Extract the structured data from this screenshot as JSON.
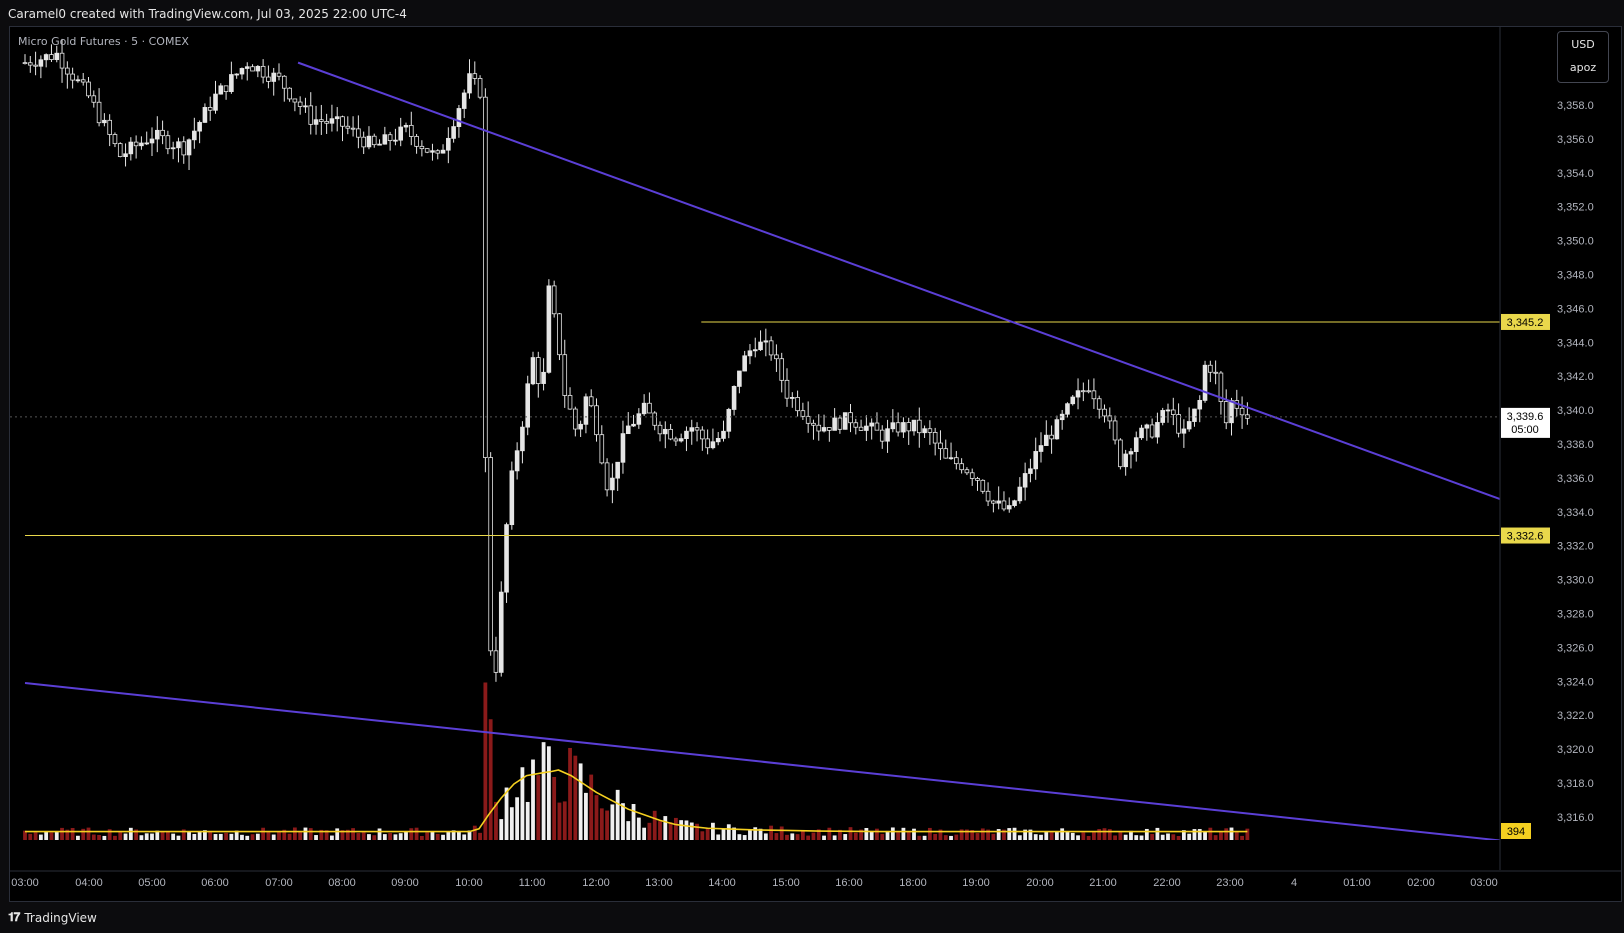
{
  "header": {
    "title": "Caramel0 created with TradingView.com, Jul 03, 2025 22:00 UTC-4"
  },
  "symbol": {
    "label": "Micro Gold Futures · 5 · COMEX"
  },
  "scale": {
    "currency": "USD",
    "setting": "apoz"
  },
  "colors": {
    "background": "#000000",
    "candle": "#e6e6e6",
    "volume_up": "#f0f0f0",
    "volume_down": "#8b1a1a",
    "volume_ma": "#f5d020",
    "trendline": "#5b3fd6",
    "level_line": "#e9d84b"
  },
  "footer": {
    "brand": "TradingView",
    "logo_icon": "tradingview-logo-icon"
  },
  "chart_data": {
    "type": "candlestick",
    "title": "Micro Gold Futures · 5 · COMEX",
    "timeframe": "5",
    "y_ticks": [
      "3,358.0",
      "3,356.0",
      "3,354.0",
      "3,352.0",
      "3,350.0",
      "3,348.0",
      "3,346.0",
      "3,344.0",
      "3,342.0",
      "3,340.0",
      "3,338.0",
      "3,336.0",
      "3,334.0",
      "3,332.0",
      "3,330.0",
      "3,328.0",
      "3,326.0",
      "3,324.0",
      "3,322.0",
      "3,320.0",
      "3,318.0",
      "3,316.0"
    ],
    "x_ticks": [
      "03:00",
      "04:00",
      "05:00",
      "06:00",
      "07:00",
      "08:00",
      "09:00",
      "10:00",
      "11:00",
      "12:00",
      "13:00",
      "14:00",
      "15:00",
      "16:00",
      "18:00",
      "19:00",
      "20:00",
      "21:00",
      "22:00",
      "23:00",
      "4",
      "01:00",
      "02:00",
      "03:00"
    ],
    "ylim": [
      3314.5,
      3361.5
    ],
    "price_path": [
      [
        0,
        3360.5
      ],
      [
        1,
        3361
      ],
      [
        2,
        3358.5
      ],
      [
        3,
        3355
      ],
      [
        4,
        3356.2
      ],
      [
        5,
        3355.5
      ],
      [
        6,
        3358.5
      ],
      [
        7,
        3360.5
      ],
      [
        8,
        3359.5
      ],
      [
        9,
        3357.2
      ],
      [
        10,
        3356.8
      ],
      [
        11,
        3355.5
      ],
      [
        12,
        3356.5
      ],
      [
        13,
        3354.8
      ],
      [
        14,
        3359.5
      ],
      [
        14.35,
        3358.8
      ],
      [
        14.5,
        3337
      ],
      [
        14.6,
        3331
      ],
      [
        14.7,
        3323.5
      ],
      [
        14.85,
        3325
      ],
      [
        15,
        3329
      ],
      [
        15.2,
        3334
      ],
      [
        15.4,
        3337
      ],
      [
        15.6,
        3338.5
      ],
      [
        15.8,
        3341
      ],
      [
        16,
        3343
      ],
      [
        16.3,
        3341
      ],
      [
        16.5,
        3347
      ],
      [
        16.8,
        3344
      ],
      [
        17,
        3341
      ],
      [
        17.4,
        3338.5
      ],
      [
        17.7,
        3341
      ],
      [
        18,
        3339
      ],
      [
        18.4,
        3335
      ],
      [
        18.7,
        3337.5
      ],
      [
        19,
        3339
      ],
      [
        19.5,
        3340
      ],
      [
        20,
        3339
      ],
      [
        20.5,
        3338.5
      ],
      [
        21,
        3339
      ],
      [
        21.5,
        3338
      ],
      [
        22,
        3338.5
      ],
      [
        22.5,
        3342.5
      ],
      [
        23,
        3344
      ],
      [
        23.5,
        3343.5
      ],
      [
        24,
        3341
      ],
      [
        24.5,
        3340
      ],
      [
        25,
        3339
      ],
      [
        25.5,
        3339.2
      ],
      [
        26,
        3339.5
      ],
      [
        26.5,
        3339
      ],
      [
        27,
        3338.5
      ],
      [
        27.5,
        3339
      ],
      [
        28,
        3339
      ],
      [
        28.5,
        3338.5
      ],
      [
        29,
        3337
      ],
      [
        29.5,
        3336.8
      ],
      [
        30,
        3336
      ],
      [
        30.5,
        3334.5
      ],
      [
        31,
        3334
      ],
      [
        31.5,
        3336
      ],
      [
        32,
        3338
      ],
      [
        32.5,
        3339
      ],
      [
        33,
        3340.5
      ],
      [
        33.5,
        3341.5
      ],
      [
        34,
        3340
      ],
      [
        34.5,
        3337
      ],
      [
        35,
        3338.5
      ],
      [
        35.5,
        3338.8
      ],
      [
        36,
        3340
      ],
      [
        36.5,
        3338.5
      ],
      [
        37,
        3340.5
      ],
      [
        37.2,
        3343
      ],
      [
        37.5,
        3342
      ],
      [
        37.8,
        3339
      ],
      [
        38,
        3340.5
      ],
      [
        38.4,
        3340
      ],
      [
        38.5,
        3339.6
      ]
    ],
    "volume_ma": [
      [
        0,
        3
      ],
      [
        1,
        3
      ],
      [
        2,
        3
      ],
      [
        3,
        3
      ],
      [
        4,
        3
      ],
      [
        5,
        3
      ],
      [
        6,
        3
      ],
      [
        7,
        3
      ],
      [
        8,
        3
      ],
      [
        9,
        3
      ],
      [
        10,
        3
      ],
      [
        11,
        3
      ],
      [
        12,
        3
      ],
      [
        13,
        3
      ],
      [
        14,
        3
      ],
      [
        14.3,
        4
      ],
      [
        14.6,
        9
      ],
      [
        15,
        15
      ],
      [
        15.4,
        20
      ],
      [
        15.8,
        23
      ],
      [
        16.3,
        24
      ],
      [
        16.6,
        24.5
      ],
      [
        16.8,
        25
      ],
      [
        17.2,
        23
      ],
      [
        17.6,
        20
      ],
      [
        18,
        17
      ],
      [
        18.5,
        14
      ],
      [
        19,
        11
      ],
      [
        19.5,
        9
      ],
      [
        20,
        7
      ],
      [
        20.5,
        5.5
      ],
      [
        21,
        4.8
      ],
      [
        21.5,
        4.2
      ],
      [
        22,
        4
      ],
      [
        23,
        3.6
      ],
      [
        24,
        3.4
      ],
      [
        25,
        3.2
      ],
      [
        26,
        3.1
      ],
      [
        27,
        3
      ],
      [
        28,
        3
      ],
      [
        29,
        3
      ],
      [
        30,
        3
      ],
      [
        31,
        3
      ],
      [
        32,
        3
      ],
      [
        33,
        3
      ],
      [
        34,
        3
      ],
      [
        35,
        3
      ],
      [
        36,
        3
      ],
      [
        37,
        3
      ],
      [
        38,
        3
      ],
      [
        38.5,
        3
      ]
    ],
    "volume_max": 80,
    "trendlines": [
      {
        "name": "upper-trendline",
        "points": [
          [
            8.6,
            3360.5
          ],
          [
            58,
            3326.9
          ]
        ]
      },
      {
        "name": "lower-trendline",
        "points": [
          [
            0,
            3323.9
          ],
          [
            47,
            3314.5
          ]
        ]
      }
    ],
    "levels": [
      {
        "value": "3,345.2",
        "from": 21.3,
        "to": 58
      },
      {
        "value": "3,332.6",
        "from": 0,
        "to": 58
      }
    ],
    "last_price": {
      "value": "3,339.6",
      "countdown": "05:00"
    },
    "volume_label": "394",
    "grid": false,
    "x_axis_note": "x = 5-minute bar index scaled to one unit per 30 minutes from 03:00"
  }
}
